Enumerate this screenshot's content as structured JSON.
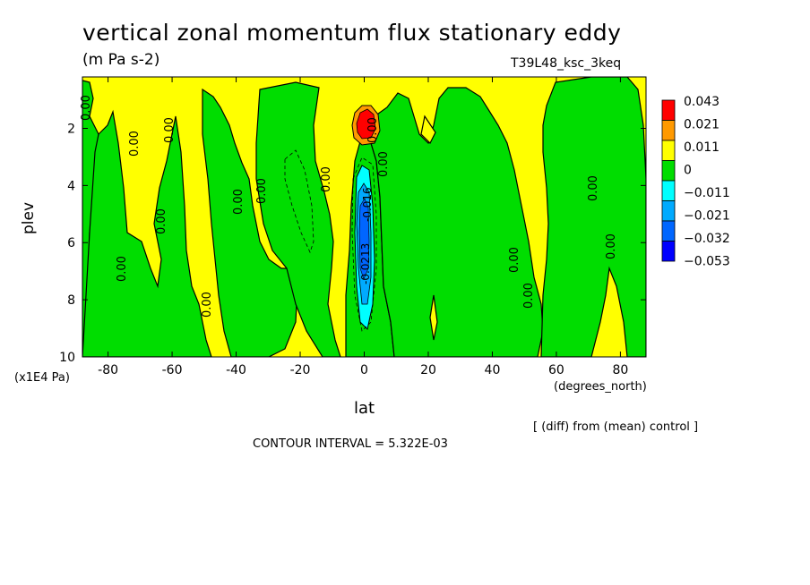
{
  "chart_data": {
    "type": "heatmap",
    "title": "vertical zonal momentum flux stationary eddy",
    "subtitle": "(m Pa s-2)",
    "run_label": "T39L48_ksc_3keq",
    "xlabel": "lat",
    "ylabel": "plev",
    "x_units": "(degrees_north)",
    "y_units": "(x1E4 Pa)",
    "xlim": [
      -88,
      88
    ],
    "ylim": [
      10,
      0.2
    ],
    "x_ticks": [
      "-80",
      "-60",
      "-40",
      "-20",
      "0",
      "20",
      "40",
      "60",
      "80"
    ],
    "x_tick_values": [
      -80,
      -60,
      -40,
      -20,
      0,
      20,
      40,
      60,
      80
    ],
    "y_ticks": [
      "2",
      "4",
      "6",
      "8",
      "10"
    ],
    "y_tick_values": [
      2,
      4,
      6,
      8,
      10
    ],
    "legend": {
      "placement": "right",
      "labels": [
        "0.043",
        "0.021",
        "0.011",
        "0",
        "−0.011",
        "−0.021",
        "−0.032",
        "−0.053"
      ],
      "colors": [
        "#ff0000",
        "#ff9900",
        "#ffff00",
        "#00dd00",
        "#00ffff",
        "#00aaff",
        "#0066ff",
        "#0000ff"
      ]
    },
    "contour_labels": [
      "0.00",
      "-0.0213",
      "-0.016"
    ],
    "footnote": "[ (diff) from (mean) control ]",
    "contour_interval": "CONTOUR INTERVAL = 5.322E-03",
    "colors": {
      "yellow": "#ffff00",
      "green": "#00dd00",
      "cyan": "#00ffff",
      "lightblue": "#00aaff",
      "blue": "#0066ff",
      "orange": "#ff9900",
      "red": "#ff0000"
    }
  }
}
